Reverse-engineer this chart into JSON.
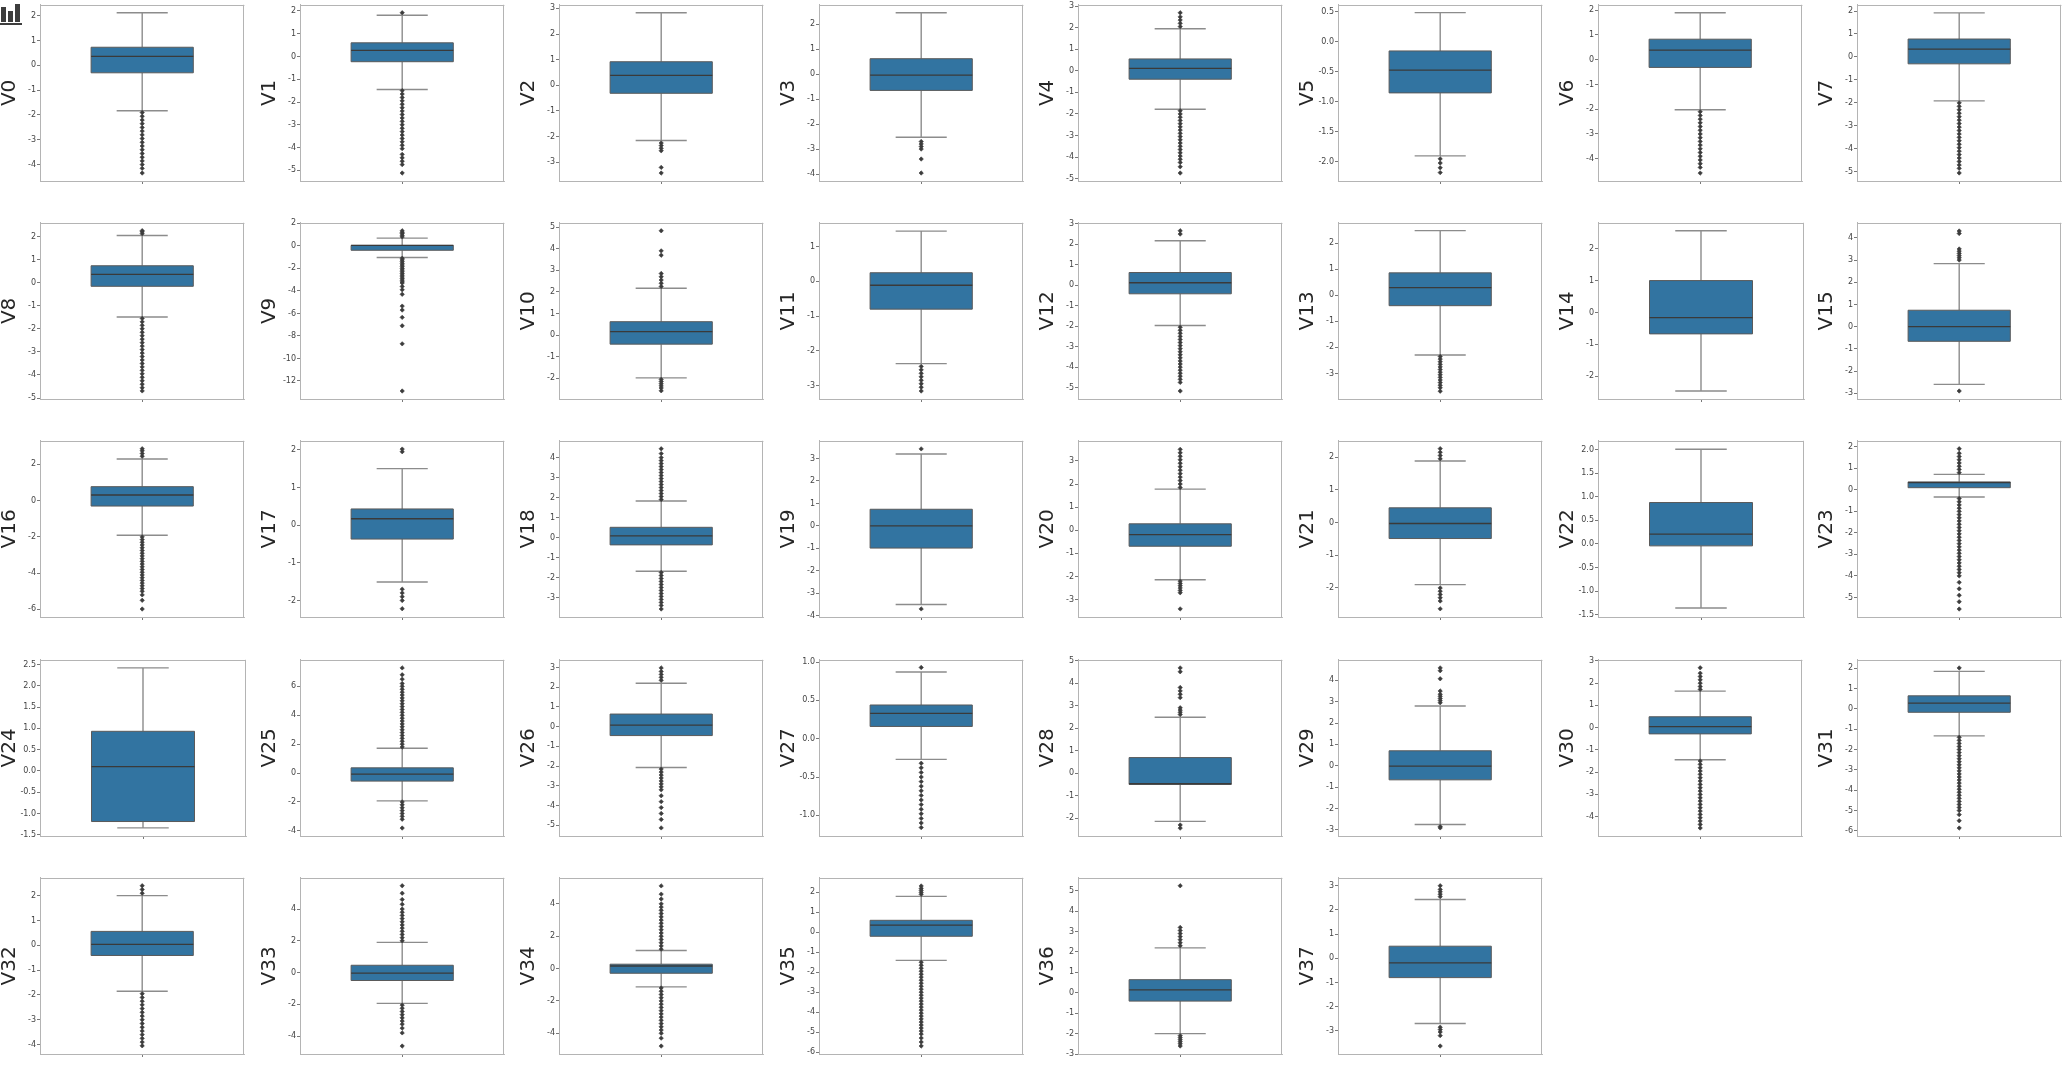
{
  "chart_data": [
    {
      "type": "box",
      "ylabel": "V0",
      "categories": [
        null
      ],
      "color": "#3274a1",
      "marker": "diamond",
      "ylim": [
        -4.66,
        2.44
      ],
      "yticks": [
        -4,
        -3,
        -2,
        -1,
        0,
        1,
        2
      ],
      "boxes": [
        {
          "low": -1.83,
          "q1": -0.3,
          "median": 0.36,
          "q3": 0.73,
          "high": 2.12,
          "outliers": [
            -1.9,
            -2.05,
            -2.2,
            -2.35,
            -2.5,
            -2.65,
            -2.8,
            -2.95,
            -3.1,
            -3.25,
            -3.4,
            -3.55,
            -3.7,
            -3.85,
            -4.0,
            -4.15,
            -4.34
          ]
        }
      ]
    },
    {
      "type": "box",
      "ylabel": "V1",
      "categories": [
        null
      ],
      "color": "#3274a1",
      "marker": "diamond",
      "ylim": [
        -5.47,
        2.27
      ],
      "yticks": [
        -5,
        -4,
        -3,
        -2,
        -1,
        0,
        1,
        2
      ],
      "boxes": [
        {
          "low": -1.45,
          "q1": -0.23,
          "median": 0.27,
          "q3": 0.6,
          "high": 1.81,
          "outliers": [
            1.92,
            -1.5,
            -1.65,
            -1.8,
            -1.95,
            -2.1,
            -2.25,
            -2.4,
            -2.55,
            -2.7,
            -2.85,
            -3.0,
            -3.15,
            -3.3,
            -3.45,
            -3.6,
            -3.75,
            -3.9,
            -4.05,
            -4.3,
            -4.45,
            -4.6,
            -4.75,
            -5.12
          ]
        }
      ]
    },
    {
      "type": "box",
      "ylabel": "V2",
      "categories": [
        null
      ],
      "color": "#3274a1",
      "marker": "diamond",
      "ylim": [
        -3.73,
        3.14
      ],
      "yticks": [
        -3,
        -2,
        -1,
        0,
        1,
        2,
        3
      ],
      "boxes": [
        {
          "low": -2.15,
          "q1": -0.31,
          "median": 0.39,
          "q3": 0.92,
          "high": 2.83,
          "outliers": [
            -2.25,
            -2.35,
            -2.45,
            -2.55,
            -3.2,
            -3.42
          ]
        }
      ]
    },
    {
      "type": "box",
      "ylabel": "V3",
      "categories": [
        null
      ],
      "color": "#3274a1",
      "marker": "diamond",
      "ylim": [
        -4.28,
        2.78
      ],
      "yticks": [
        -4,
        -3,
        -2,
        -1,
        0,
        1,
        2
      ],
      "boxes": [
        {
          "low": -2.53,
          "q1": -0.65,
          "median": -0.04,
          "q3": 0.62,
          "high": 2.46,
          "outliers": [
            -2.7,
            -2.8,
            -2.9,
            -3.0,
            -3.4,
            -3.96
          ]
        }
      ]
    },
    {
      "type": "box",
      "ylabel": "V4",
      "categories": [
        null
      ],
      "color": "#3274a1",
      "marker": "diamond",
      "ylim": [
        -5.11,
        3.06
      ],
      "yticks": [
        -5,
        -4,
        -3,
        -2,
        -1,
        0,
        1,
        2,
        3
      ],
      "boxes": [
        {
          "low": -1.78,
          "q1": -0.39,
          "median": 0.11,
          "q3": 0.55,
          "high": 1.95,
          "outliers": [
            2.05,
            2.2,
            2.35,
            2.5,
            2.69,
            -1.85,
            -2.0,
            -2.15,
            -2.3,
            -2.45,
            -2.6,
            -2.75,
            -2.9,
            -3.05,
            -3.2,
            -3.35,
            -3.5,
            -3.65,
            -3.8,
            -3.95,
            -4.1,
            -4.25,
            -4.45,
            -4.74
          ]
        }
      ]
    },
    {
      "type": "box",
      "ylabel": "V5",
      "categories": [
        null
      ],
      "color": "#3274a1",
      "marker": "diamond",
      "ylim": [
        -2.32,
        0.62
      ],
      "yticks": [
        {
          "value": -2,
          "label": "-2.0"
        },
        -1.5,
        {
          "value": -1,
          "label": "-1.0"
        },
        -0.5,
        {
          "value": 0,
          "label": "0.0"
        },
        0.5
      ],
      "boxes": [
        {
          "low": -1.9,
          "q1": -0.85,
          "median": -0.47,
          "q3": -0.15,
          "high": 0.49,
          "outliers": [
            -1.95,
            -2.02,
            -2.1,
            -2.18
          ]
        }
      ]
    },
    {
      "type": "box",
      "ylabel": "V6",
      "categories": [
        null
      ],
      "color": "#3274a1",
      "marker": "diamond",
      "ylim": [
        -4.9,
        2.22
      ],
      "yticks": [
        -4,
        -3,
        -2,
        -1,
        0,
        1,
        2
      ],
      "boxes": [
        {
          "low": -2.02,
          "q1": -0.31,
          "median": 0.39,
          "q3": 0.83,
          "high": 1.9,
          "outliers": [
            -2.1,
            -2.25,
            -2.4,
            -2.55,
            -2.7,
            -2.85,
            -3.0,
            -3.15,
            -3.3,
            -3.45,
            -3.6,
            -3.75,
            -3.9,
            -4.05,
            -4.2,
            -4.35,
            -4.58
          ]
        }
      ]
    },
    {
      "type": "box",
      "ylabel": "V7",
      "categories": [
        null
      ],
      "color": "#3274a1",
      "marker": "diamond",
      "ylim": [
        -5.4,
        2.27
      ],
      "yticks": [
        -5,
        -4,
        -3,
        -2,
        -1,
        0,
        1,
        2
      ],
      "boxes": [
        {
          "low": -1.91,
          "q1": -0.3,
          "median": 0.34,
          "q3": 0.78,
          "high": 1.92,
          "outliers": [
            -2.0,
            -2.15,
            -2.3,
            -2.45,
            -2.6,
            -2.75,
            -2.9,
            -3.05,
            -3.2,
            -3.35,
            -3.5,
            -3.65,
            -3.8,
            -3.95,
            -4.1,
            -4.25,
            -4.4,
            -4.55,
            -4.7,
            -4.85,
            -5.05
          ]
        }
      ]
    },
    {
      "type": "box",
      "ylabel": "V8",
      "categories": [
        null
      ],
      "color": "#3274a1",
      "marker": "diamond",
      "ylim": [
        -5.04,
        2.59
      ],
      "yticks": [
        -5,
        -4,
        -3,
        -2,
        -1,
        0,
        1,
        2
      ],
      "boxes": [
        {
          "low": -1.49,
          "q1": -0.16,
          "median": 0.36,
          "q3": 0.73,
          "high": 2.04,
          "outliers": [
            2.12,
            2.2,
            2.25,
            -1.55,
            -1.7,
            -1.85,
            -2.0,
            -2.15,
            -2.3,
            -2.45,
            -2.6,
            -2.75,
            -2.9,
            -3.05,
            -3.2,
            -3.35,
            -3.5,
            -3.65,
            -3.8,
            -3.95,
            -4.1,
            -4.25,
            -4.4,
            -4.55,
            -4.69
          ]
        }
      ]
    },
    {
      "type": "box",
      "ylabel": "V9",
      "categories": [
        null
      ],
      "color": "#3274a1",
      "marker": "diamond",
      "ylim": [
        -13.6,
        2.05
      ],
      "yticks": [
        -12,
        -10,
        -8,
        -6,
        -4,
        -2,
        0,
        2
      ],
      "boxes": [
        {
          "low": -1.03,
          "q1": -0.39,
          "median": 0.04,
          "q3": 0.04,
          "high": 0.69,
          "outliers": [
            0.8,
            0.95,
            1.1,
            1.2,
            1.34,
            -1.1,
            -1.25,
            -1.4,
            -1.55,
            -1.7,
            -1.85,
            -2.0,
            -2.15,
            -2.3,
            -2.45,
            -2.6,
            -2.75,
            -2.9,
            -3.05,
            -3.2,
            -3.3,
            -3.6,
            -3.9,
            -4.3,
            -5.35,
            -5.7,
            -6.35,
            -7.1,
            -8.7,
            -12.89
          ]
        }
      ]
    },
    {
      "type": "box",
      "ylabel": "V10",
      "categories": [
        null
      ],
      "color": "#3274a1",
      "marker": "diamond",
      "ylim": [
        -2.96,
        5.2
      ],
      "yticks": [
        -2,
        -1,
        0,
        1,
        2,
        3,
        4,
        5
      ],
      "boxes": [
        {
          "low": -1.98,
          "q1": -0.42,
          "median": 0.16,
          "q3": 0.62,
          "high": 2.17,
          "outliers": [
            2.25,
            2.4,
            2.55,
            2.7,
            2.85,
            3.7,
            3.9,
            4.83,
            -2.05,
            -2.15,
            -2.25,
            -2.35,
            -2.45,
            -2.58
          ]
        }
      ]
    },
    {
      "type": "box",
      "ylabel": "V11",
      "categories": [
        null
      ],
      "color": "#3274a1",
      "marker": "diamond",
      "ylim": [
        -3.39,
        1.69
      ],
      "yticks": [
        -3,
        -2,
        -1,
        0,
        1
      ],
      "boxes": [
        {
          "low": -2.37,
          "q1": -0.8,
          "median": -0.11,
          "q3": 0.25,
          "high": 1.45,
          "outliers": [
            -2.45,
            -2.55,
            -2.65,
            -2.75,
            -2.85,
            -2.95,
            -3.05,
            -3.16
          ]
        }
      ]
    },
    {
      "type": "box",
      "ylabel": "V12",
      "categories": [
        null
      ],
      "color": "#3274a1",
      "marker": "diamond",
      "ylim": [
        -5.56,
        3.05
      ],
      "yticks": [
        -5,
        -4,
        -3,
        -2,
        -1,
        0,
        1,
        2,
        3
      ],
      "boxes": [
        {
          "low": -1.97,
          "q1": -0.42,
          "median": 0.12,
          "q3": 0.62,
          "high": 2.17,
          "outliers": [
            2.5,
            2.66,
            -2.05,
            -2.2,
            -2.35,
            -2.5,
            -2.65,
            -2.8,
            -2.95,
            -3.1,
            -3.25,
            -3.4,
            -3.55,
            -3.7,
            -3.85,
            -4.0,
            -4.15,
            -4.3,
            -4.45,
            -4.6,
            -4.75,
            -5.17
          ]
        }
      ]
    },
    {
      "type": "box",
      "ylabel": "V13",
      "categories": [
        null
      ],
      "color": "#3274a1",
      "marker": "diamond",
      "ylim": [
        -3.98,
        2.78
      ],
      "yticks": [
        -3,
        -2,
        -1,
        0,
        1,
        2
      ],
      "boxes": [
        {
          "low": -2.29,
          "q1": -0.4,
          "median": 0.29,
          "q3": 0.86,
          "high": 2.48,
          "outliers": [
            -2.35,
            -2.45,
            -2.55,
            -2.65,
            -2.75,
            -2.85,
            -2.95,
            -3.05,
            -3.15,
            -3.25,
            -3.35,
            -3.45,
            -3.55,
            -3.68
          ]
        }
      ]
    },
    {
      "type": "box",
      "ylabel": "V14",
      "categories": [
        null
      ],
      "color": "#3274a1",
      "marker": "diamond",
      "ylim": [
        -2.71,
        2.81
      ],
      "yticks": [
        -2,
        -1,
        0,
        1,
        2
      ],
      "boxes": [
        {
          "low": -2.46,
          "q1": -0.67,
          "median": -0.16,
          "q3": 1.0,
          "high": 2.56
        }
      ]
    },
    {
      "type": "box",
      "ylabel": "V15",
      "categories": [
        null
      ],
      "color": "#3274a1",
      "marker": "diamond",
      "ylim": [
        -3.26,
        4.68
      ],
      "yticks": [
        -3,
        -2,
        -1,
        0,
        1,
        2,
        3,
        4
      ],
      "boxes": [
        {
          "low": -2.6,
          "q1": -0.66,
          "median": 0.0,
          "q3": 0.74,
          "high": 2.84,
          "outliers": [
            3.0,
            3.1,
            3.2,
            3.3,
            3.4,
            3.5,
            4.2,
            4.31,
            -2.9
          ]
        }
      ]
    },
    {
      "type": "box",
      "ylabel": "V16",
      "categories": [
        null
      ],
      "color": "#3274a1",
      "marker": "diamond",
      "ylim": [
        -6.42,
        3.3
      ],
      "yticks": [
        -6,
        -4,
        -2,
        0,
        2
      ],
      "boxes": [
        {
          "low": -1.91,
          "q1": -0.3,
          "median": 0.31,
          "q3": 0.77,
          "high": 2.3,
          "outliers": [
            2.45,
            2.6,
            2.75,
            2.86,
            -2.0,
            -2.15,
            -2.3,
            -2.45,
            -2.6,
            -2.75,
            -2.9,
            -3.05,
            -3.2,
            -3.35,
            -3.5,
            -3.65,
            -3.8,
            -3.95,
            -4.1,
            -4.25,
            -4.4,
            -4.55,
            -4.7,
            -4.85,
            -5.0,
            -5.2,
            -5.5,
            -5.98
          ]
        }
      ]
    },
    {
      "type": "box",
      "ylabel": "V17",
      "categories": [
        null
      ],
      "color": "#3274a1",
      "marker": "diamond",
      "ylim": [
        -2.44,
        2.24
      ],
      "yticks": [
        -2,
        -1,
        0,
        1,
        2
      ],
      "boxes": [
        {
          "low": -1.51,
          "q1": -0.37,
          "median": 0.17,
          "q3": 0.43,
          "high": 1.5,
          "outliers": [
            1.95,
            2.02,
            -1.7,
            -1.8,
            -1.9,
            -2.0,
            -2.22
          ]
        }
      ]
    },
    {
      "type": "box",
      "ylabel": "V18",
      "categories": [
        null
      ],
      "color": "#3274a1",
      "marker": "diamond",
      "ylim": [
        -3.98,
        4.84
      ],
      "yticks": [
        -3,
        -2,
        -1,
        0,
        1,
        2,
        3,
        4
      ],
      "boxes": [
        {
          "low": -1.69,
          "q1": -0.37,
          "median": 0.08,
          "q3": 0.51,
          "high": 1.83,
          "outliers": [
            1.9,
            2.05,
            2.2,
            2.35,
            2.5,
            2.65,
            2.8,
            2.95,
            3.1,
            3.25,
            3.4,
            3.55,
            3.7,
            3.85,
            4.0,
            4.2,
            4.44,
            -1.75,
            -1.9,
            -2.05,
            -2.2,
            -2.35,
            -2.5,
            -2.65,
            -2.8,
            -2.95,
            -3.1,
            -3.25,
            -3.4,
            -3.58
          ]
        }
      ]
    },
    {
      "type": "box",
      "ylabel": "V19",
      "categories": [
        null
      ],
      "color": "#3274a1",
      "marker": "diamond",
      "ylim": [
        -4.06,
        3.79
      ],
      "yticks": [
        -4,
        -3,
        -2,
        -1,
        0,
        1,
        2,
        3
      ],
      "boxes": [
        {
          "low": -3.5,
          "q1": -0.99,
          "median": 0.0,
          "q3": 0.74,
          "high": 3.2,
          "outliers": [
            3.43,
            -3.7
          ]
        }
      ]
    },
    {
      "type": "box",
      "ylabel": "V20",
      "categories": [
        null
      ],
      "color": "#3274a1",
      "marker": "diamond",
      "ylim": [
        -3.75,
        3.87
      ],
      "yticks": [
        -3,
        -2,
        -1,
        0,
        1,
        2,
        3
      ],
      "boxes": [
        {
          "low": -2.14,
          "q1": -0.69,
          "median": -0.19,
          "q3": 0.28,
          "high": 1.78,
          "outliers": [
            1.85,
            2.0,
            2.15,
            2.3,
            2.45,
            2.6,
            2.75,
            2.9,
            3.05,
            3.2,
            3.35,
            3.5,
            -2.2,
            -2.3,
            -2.4,
            -2.5,
            -2.6,
            -2.7,
            -3.4
          ]
        }
      ]
    },
    {
      "type": "box",
      "ylabel": "V21",
      "categories": [
        null
      ],
      "color": "#3274a1",
      "marker": "diamond",
      "ylim": [
        -2.89,
        2.5
      ],
      "yticks": [
        -2,
        -1,
        0,
        1,
        2
      ],
      "boxes": [
        {
          "low": -1.9,
          "q1": -0.49,
          "median": -0.03,
          "q3": 0.45,
          "high": 1.88,
          "outliers": [
            1.95,
            2.05,
            2.15,
            2.26,
            -2.0,
            -2.1,
            -2.2,
            -2.3,
            -2.4,
            -2.64
          ]
        }
      ]
    },
    {
      "type": "box",
      "ylabel": "V22",
      "categories": [
        null
      ],
      "color": "#3274a1",
      "marker": "diamond",
      "ylim": [
        -1.55,
        2.19
      ],
      "yticks": [
        -1.5,
        {
          "value": -1,
          "label": "-1.0"
        },
        -0.5,
        {
          "value": 0,
          "label": "0.0"
        },
        0.5,
        {
          "value": 1,
          "label": "1.0"
        },
        1.5,
        {
          "value": 2,
          "label": "2.0"
        }
      ],
      "boxes": [
        {
          "low": -1.36,
          "q1": -0.04,
          "median": 0.21,
          "q3": 0.88,
          "high": 2.01
        }
      ]
    },
    {
      "type": "box",
      "ylabel": "V23",
      "categories": [
        null
      ],
      "color": "#3274a1",
      "marker": "diamond",
      "ylim": [
        -5.91,
        2.28
      ],
      "yticks": [
        -5,
        -4,
        -3,
        -2,
        -1,
        0,
        1,
        2
      ],
      "boxes": [
        {
          "low": -0.33,
          "q1": 0.1,
          "median": 0.34,
          "q3": 0.37,
          "high": 0.72,
          "outliers": [
            0.8,
            0.95,
            1.1,
            1.25,
            1.4,
            1.55,
            1.7,
            1.91,
            -0.4,
            -0.55,
            -0.7,
            -0.85,
            -1.0,
            -1.15,
            -1.3,
            -1.45,
            -1.6,
            -1.75,
            -1.9,
            -2.05,
            -2.2,
            -2.35,
            -2.5,
            -2.65,
            -2.8,
            -2.95,
            -3.1,
            -3.25,
            -3.4,
            -3.55,
            -3.7,
            -3.85,
            -4.0,
            -4.3,
            -4.6,
            -4.9,
            -5.2,
            -5.54
          ]
        }
      ]
    },
    {
      "type": "box",
      "ylabel": "V24",
      "categories": [
        null
      ],
      "color": "#3274a1",
      "marker": "diamond",
      "ylim": [
        -1.53,
        2.61
      ],
      "yticks": [
        -1.5,
        {
          "value": -1,
          "label": "-1.0"
        },
        -0.5,
        {
          "value": 0,
          "label": "0.0"
        },
        0.5,
        {
          "value": 1,
          "label": "1.0"
        },
        1.5,
        {
          "value": 2,
          "label": "2.0"
        },
        2.5
      ],
      "boxes": [
        {
          "low": -1.34,
          "q1": -1.19,
          "median": 0.1,
          "q3": 0.93,
          "high": 2.42
        }
      ]
    },
    {
      "type": "box",
      "ylabel": "V25",
      "categories": [
        null
      ],
      "color": "#3274a1",
      "marker": "diamond",
      "ylim": [
        -4.36,
        7.84
      ],
      "yticks": [
        -4,
        -2,
        0,
        2,
        4,
        6
      ],
      "boxes": [
        {
          "low": -1.93,
          "q1": -0.56,
          "median": -0.08,
          "q3": 0.36,
          "high": 1.72,
          "outliers": [
            1.8,
            2.0,
            2.2,
            2.4,
            2.6,
            2.8,
            3.0,
            3.2,
            3.4,
            3.6,
            3.8,
            4.0,
            4.2,
            4.4,
            4.6,
            4.8,
            5.0,
            5.2,
            5.4,
            5.6,
            5.8,
            6.0,
            6.2,
            6.5,
            6.8,
            7.28,
            -2.0,
            -2.2,
            -2.4,
            -2.6,
            -2.8,
            -3.0,
            -3.2,
            -3.81
          ]
        }
      ]
    },
    {
      "type": "box",
      "ylabel": "V26",
      "categories": [
        null
      ],
      "color": "#3274a1",
      "marker": "diamond",
      "ylim": [
        -5.54,
        3.39
      ],
      "yticks": [
        -5,
        -4,
        -3,
        -2,
        -1,
        0,
        1,
        2,
        3
      ],
      "boxes": [
        {
          "low": -2.07,
          "q1": -0.45,
          "median": 0.08,
          "q3": 0.64,
          "high": 2.2,
          "outliers": [
            2.35,
            2.5,
            2.65,
            2.8,
            2.98,
            -2.15,
            -2.3,
            -2.45,
            -2.6,
            -2.75,
            -2.9,
            -3.05,
            -3.2,
            -3.5,
            -3.8,
            -4.1,
            -4.4,
            -4.7,
            -5.13
          ]
        }
      ]
    },
    {
      "type": "box",
      "ylabel": "V27",
      "categories": [
        null
      ],
      "color": "#3274a1",
      "marker": "diamond",
      "ylim": [
        -1.27,
        1.03
      ],
      "yticks": [
        {
          "value": -1,
          "label": "-1.0"
        },
        -0.5,
        {
          "value": 0,
          "label": "0.0"
        },
        0.5,
        {
          "value": 1,
          "label": "1.0"
        }
      ],
      "boxes": [
        {
          "low": -0.27,
          "q1": 0.16,
          "median": 0.33,
          "q3": 0.44,
          "high": 0.87,
          "outliers": [
            0.93,
            -0.32,
            -0.38,
            -0.44,
            -0.5,
            -0.56,
            -0.62,
            -0.68,
            -0.74,
            -0.8,
            -0.86,
            -0.92,
            -0.98,
            -1.04,
            -1.1,
            -1.16
          ]
        }
      ]
    },
    {
      "type": "box",
      "ylabel": "V28",
      "categories": [
        null
      ],
      "color": "#3274a1",
      "marker": "diamond",
      "ylim": [
        -2.79,
        5.03
      ],
      "yticks": [
        -2,
        -1,
        0,
        1,
        2,
        3,
        4,
        5
      ],
      "boxes": [
        {
          "low": -2.14,
          "q1": -0.5,
          "median": -0.47,
          "q3": 0.69,
          "high": 2.48,
          "outliers": [
            2.6,
            2.7,
            2.8,
            2.9,
            3.35,
            3.5,
            3.65,
            3.8,
            4.5,
            4.67,
            -2.3,
            -2.44
          ]
        }
      ]
    },
    {
      "type": "box",
      "ylabel": "V29",
      "categories": [
        null
      ],
      "color": "#3274a1",
      "marker": "diamond",
      "ylim": [
        -3.29,
        4.96
      ],
      "yticks": [
        -3,
        -2,
        -1,
        0,
        1,
        2,
        3,
        4
      ],
      "boxes": [
        {
          "low": -2.75,
          "q1": -0.66,
          "median": -0.02,
          "q3": 0.7,
          "high": 2.8,
          "outliers": [
            2.95,
            3.05,
            3.15,
            3.25,
            3.35,
            3.5,
            4.07,
            4.45,
            4.58,
            -2.85,
            -2.91
          ]
        }
      ]
    },
    {
      "type": "box",
      "ylabel": "V30",
      "categories": [
        null
      ],
      "color": "#3274a1",
      "marker": "diamond",
      "ylim": [
        -4.87,
        3.05
      ],
      "yticks": [
        -4,
        -3,
        -2,
        -1,
        0,
        1,
        2,
        3
      ],
      "boxes": [
        {
          "low": -1.44,
          "q1": -0.28,
          "median": 0.05,
          "q3": 0.49,
          "high": 1.64,
          "outliers": [
            1.72,
            1.85,
            2.0,
            2.15,
            2.3,
            2.45,
            2.69,
            -1.5,
            -1.65,
            -1.8,
            -1.95,
            -2.1,
            -2.25,
            -2.4,
            -2.55,
            -2.7,
            -2.85,
            -3.0,
            -3.15,
            -3.3,
            -3.45,
            -3.6,
            -3.75,
            -3.9,
            -4.05,
            -4.2,
            -4.35,
            -4.51
          ]
        }
      ]
    },
    {
      "type": "box",
      "ylabel": "V31",
      "categories": [
        null
      ],
      "color": "#3274a1",
      "marker": "diamond",
      "ylim": [
        -6.25,
        2.41
      ],
      "yticks": [
        -6,
        -5,
        -4,
        -3,
        -2,
        -1,
        0,
        1,
        2
      ],
      "boxes": [
        {
          "low": -1.33,
          "q1": -0.17,
          "median": 0.28,
          "q3": 0.64,
          "high": 1.84,
          "outliers": [
            2.01,
            -1.4,
            -1.55,
            -1.7,
            -1.85,
            -2.0,
            -2.15,
            -2.3,
            -2.45,
            -2.6,
            -2.75,
            -2.9,
            -3.05,
            -3.2,
            -3.35,
            -3.5,
            -3.65,
            -3.8,
            -3.95,
            -4.1,
            -4.25,
            -4.4,
            -4.55,
            -4.7,
            -4.85,
            -5.0,
            -5.2,
            -5.5,
            -5.86
          ]
        }
      ]
    },
    {
      "type": "box",
      "ylabel": "V32",
      "categories": [
        null
      ],
      "color": "#3274a1",
      "marker": "diamond",
      "ylim": [
        -4.38,
        2.72
      ],
      "yticks": [
        -4,
        -3,
        -2,
        -1,
        0,
        1,
        2
      ],
      "boxes": [
        {
          "low": -1.85,
          "q1": -0.41,
          "median": 0.04,
          "q3": 0.56,
          "high": 2.0,
          "outliers": [
            2.1,
            2.25,
            2.4,
            -1.95,
            -2.1,
            -2.25,
            -2.4,
            -2.55,
            -2.7,
            -2.85,
            -3.0,
            -3.15,
            -3.3,
            -3.45,
            -3.6,
            -3.75,
            -3.9,
            -4.05
          ]
        }
      ]
    },
    {
      "type": "box",
      "ylabel": "V33",
      "categories": [
        null
      ],
      "color": "#3274a1",
      "marker": "diamond",
      "ylim": [
        -5.13,
        5.97
      ],
      "yticks": [
        -4,
        -2,
        0,
        2,
        4
      ],
      "boxes": [
        {
          "low": -1.94,
          "q1": -0.5,
          "median": -0.04,
          "q3": 0.46,
          "high": 1.9,
          "outliers": [
            2.0,
            2.2,
            2.4,
            2.6,
            2.8,
            3.0,
            3.2,
            3.4,
            3.6,
            3.8,
            4.0,
            4.3,
            4.6,
            5.0,
            5.47,
            -2.05,
            -2.25,
            -2.45,
            -2.65,
            -2.85,
            -3.05,
            -3.25,
            -3.5,
            -3.8,
            -4.63
          ]
        }
      ]
    },
    {
      "type": "box",
      "ylabel": "V34",
      "categories": [
        null
      ],
      "color": "#3274a1",
      "marker": "diamond",
      "ylim": [
        -5.28,
        5.61
      ],
      "yticks": [
        -4,
        -2,
        0,
        2,
        4
      ],
      "boxes": [
        {
          "low": -1.13,
          "q1": -0.29,
          "median": 0.16,
          "q3": 0.27,
          "high": 1.12,
          "outliers": [
            1.2,
            1.4,
            1.6,
            1.8,
            2.0,
            2.2,
            2.4,
            2.6,
            2.8,
            3.0,
            3.2,
            3.4,
            3.6,
            3.8,
            4.0,
            4.3,
            4.6,
            5.11,
            -1.2,
            -1.4,
            -1.6,
            -1.8,
            -2.0,
            -2.2,
            -2.4,
            -2.6,
            -2.8,
            -3.0,
            -3.2,
            -3.4,
            -3.6,
            -3.8,
            -4.0,
            -4.3,
            -4.79
          ]
        }
      ]
    },
    {
      "type": "box",
      "ylabel": "V35",
      "categories": [
        null
      ],
      "color": "#3274a1",
      "marker": "diamond",
      "ylim": [
        -6.1,
        2.73
      ],
      "yticks": [
        -6,
        -5,
        -4,
        -3,
        -2,
        -1,
        0,
        1,
        2
      ],
      "boxes": [
        {
          "low": -1.41,
          "q1": -0.2,
          "median": 0.36,
          "q3": 0.6,
          "high": 1.8,
          "outliers": [
            1.9,
            2.0,
            2.1,
            2.2,
            2.32,
            -1.5,
            -1.65,
            -1.8,
            -1.95,
            -2.1,
            -2.25,
            -2.4,
            -2.55,
            -2.7,
            -2.85,
            -3.0,
            -3.15,
            -3.3,
            -3.45,
            -3.6,
            -3.75,
            -3.9,
            -4.05,
            -4.2,
            -4.35,
            -4.5,
            -4.65,
            -4.8,
            -4.95,
            -5.1,
            -5.3,
            -5.5,
            -5.7
          ]
        }
      ]
    },
    {
      "type": "box",
      "ylabel": "V36",
      "categories": [
        null
      ],
      "color": "#3274a1",
      "marker": "diamond",
      "ylim": [
        -3.0,
        5.63
      ],
      "yticks": [
        -3,
        -2,
        -1,
        0,
        1,
        2,
        3,
        4,
        5
      ],
      "boxes": [
        {
          "low": -2.0,
          "q1": -0.41,
          "median": 0.14,
          "q3": 0.64,
          "high": 2.2,
          "outliers": [
            2.3,
            2.45,
            2.6,
            2.75,
            2.9,
            3.05,
            3.2,
            5.24,
            -2.1,
            -2.2,
            -2.3,
            -2.4,
            -2.5,
            -2.61
          ]
        }
      ]
    },
    {
      "type": "box",
      "ylabel": "V37",
      "categories": [
        null
      ],
      "color": "#3274a1",
      "marker": "diamond",
      "ylim": [
        -3.96,
        3.33
      ],
      "yticks": [
        -3,
        -2,
        -1,
        0,
        1,
        2,
        3
      ],
      "boxes": [
        {
          "low": -2.7,
          "q1": -0.8,
          "median": -0.19,
          "q3": 0.5,
          "high": 2.43,
          "outliers": [
            2.55,
            2.65,
            2.75,
            2.85,
            3.0,
            -2.85,
            -2.95,
            -3.05,
            -3.2,
            -3.63
          ]
        }
      ]
    }
  ]
}
